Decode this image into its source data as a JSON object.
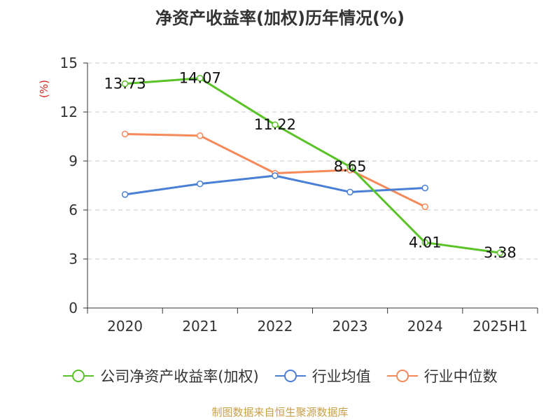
{
  "title": "净资产收益率(加权)历年情况(%)",
  "source_note": "制图数据来自恒生聚源数据库",
  "colors": {
    "series_company": "#5ac328",
    "series_industry_avg": "#4a7fd6",
    "series_industry_median": "#f5895a",
    "unit_label": "#d9261c",
    "grid": "#c8c8c8",
    "axis": "#333333"
  },
  "chart_data": {
    "type": "line",
    "categories": [
      "2020",
      "2021",
      "2022",
      "2023",
      "2024",
      "2025H1"
    ],
    "ylabel": "(%)",
    "ylim": [
      0,
      15
    ],
    "yticks": [
      0,
      3,
      6,
      9,
      12,
      15
    ],
    "grid": true,
    "legend_position": "bottom",
    "series": [
      {
        "name": "公司净资产收益率(加权)",
        "color_key": "series_company",
        "values": [
          13.73,
          14.07,
          11.22,
          8.65,
          4.01,
          3.38
        ],
        "labels": [
          "13.73",
          "14.07",
          "11.22",
          "8.65",
          "4.01",
          "3.38"
        ]
      },
      {
        "name": "行业均值",
        "color_key": "series_industry_avg",
        "values": [
          6.95,
          7.6,
          8.1,
          7.1,
          7.35,
          null
        ]
      },
      {
        "name": "行业中位数",
        "color_key": "series_industry_median",
        "values": [
          10.65,
          10.55,
          8.25,
          8.45,
          6.2,
          null
        ]
      }
    ]
  }
}
